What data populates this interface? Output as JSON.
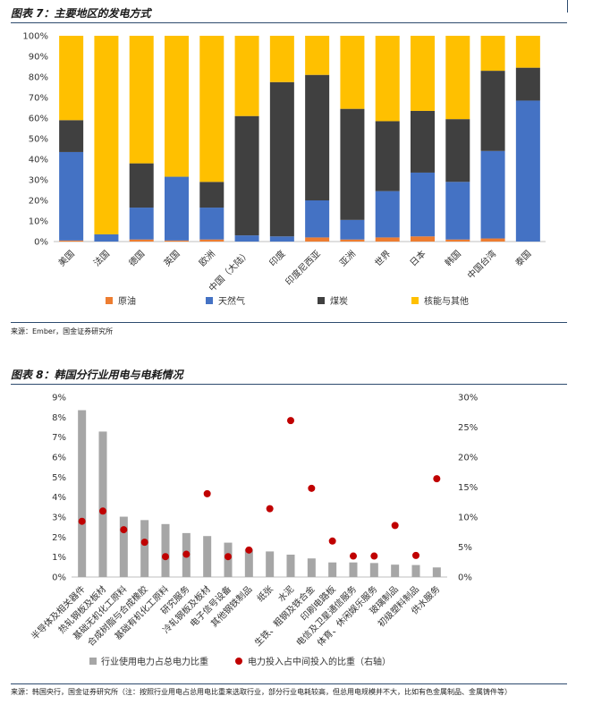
{
  "figure7": {
    "title": "图表 7：主要地区的发电方式",
    "source": "来源：Ember，国金证券研究所"
  },
  "figure8": {
    "title": "图表 8：韩国分行业用电与电耗情况",
    "source": "来源：韩国央行，国金证券研究所（注：按照行业用电占总用电比重来选取行业，部分行业电耗较高，但总用电规模并不大，比如有色金属制品、金属铸件等）"
  },
  "chart_data": [
    {
      "type": "bar",
      "stacked": true,
      "title": "主要地区的发电方式",
      "categories": [
        "美国",
        "法国",
        "德国",
        "英国",
        "欧洲",
        "中国（大陆）",
        "印度",
        "印度尼西亚",
        "亚洲",
        "世界",
        "日本",
        "韩国",
        "中国台湾",
        "泰国"
      ],
      "ylim": [
        0,
        100
      ],
      "yticks": [
        "0%",
        "10%",
        "20%",
        "30%",
        "40%",
        "50%",
        "60%",
        "70%",
        "80%",
        "90%",
        "100%"
      ],
      "series": [
        {
          "name": "原油",
          "color": "#ed7d31",
          "values": [
            0.5,
            0,
            1,
            0.5,
            1,
            0,
            0,
            2,
            1,
            2,
            2.5,
            1,
            1.5,
            0
          ]
        },
        {
          "name": "天然气",
          "color": "#4472c4",
          "values": [
            43,
            3.5,
            15.5,
            31,
            15.5,
            3,
            2.5,
            18,
            9.5,
            22.5,
            31,
            28,
            42.5,
            68.5
          ]
        },
        {
          "name": "煤炭",
          "color": "#404040",
          "values": [
            15.5,
            0,
            21.5,
            0,
            12.5,
            58,
            75,
            61,
            54,
            34,
            30,
            30.5,
            39,
            16
          ]
        },
        {
          "name": "核能与其他",
          "color": "#ffc000",
          "values": [
            41,
            96.5,
            62,
            68.5,
            71,
            39,
            22.5,
            19,
            35.5,
            41.5,
            36.5,
            40.5,
            17,
            15.5
          ]
        }
      ],
      "legend": "bottom"
    },
    {
      "type": "bar+scatter",
      "title": "韩国分行业用电与电耗情况",
      "categories": [
        "半导体及相关器件",
        "热轧钢板及板材",
        "基础无机化工原料",
        "合成树脂与合成橡胶",
        "基础有机化工原料",
        "研究服务",
        "冷轧钢板及板材",
        "电子信号设备",
        "其他钢铁制品",
        "纸张",
        "水泥",
        "生铁、粗钢及铁合金",
        "印刷电路板",
        "电信及卫星通信服务",
        "体育、休闲娱乐服务",
        "玻璃制品",
        "初级塑料制品",
        "供水服务"
      ],
      "series": [
        {
          "name": "行业使用电力占总电力比重",
          "axis": "left",
          "color": "#a6a6a6",
          "values": [
            8.35,
            7.28,
            3.02,
            2.85,
            2.65,
            2.2,
            2.05,
            1.72,
            1.38,
            1.28,
            1.12,
            0.93,
            0.73,
            0.73,
            0.7,
            0.62,
            0.6,
            0.48
          ]
        },
        {
          "name": "电力投入占中间投入的比重（右轴）",
          "axis": "right",
          "color": "#c00000",
          "values": [
            9.3,
            11.0,
            7.9,
            5.8,
            3.4,
            3.8,
            13.9,
            3.4,
            4.5,
            11.4,
            26.1,
            14.8,
            6.0,
            3.5,
            3.5,
            8.6,
            3.6,
            16.4
          ]
        }
      ],
      "ylim": [
        0,
        9
      ],
      "y2lim": [
        0,
        30
      ],
      "yticks": [
        "0%",
        "1%",
        "2%",
        "3%",
        "4%",
        "5%",
        "6%",
        "7%",
        "8%",
        "9%"
      ],
      "y2ticks": [
        "0%",
        "5%",
        "10%",
        "15%",
        "20%",
        "25%",
        "30%"
      ],
      "legend": "bottom"
    }
  ]
}
